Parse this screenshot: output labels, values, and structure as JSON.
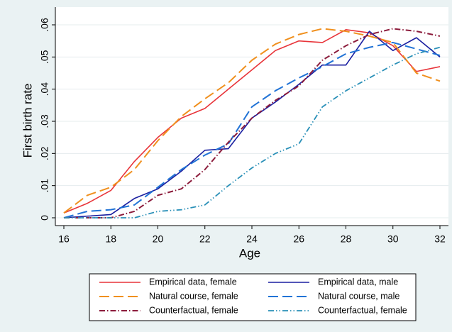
{
  "chart_data": {
    "type": "line",
    "y_label": "First birth rate",
    "x_label": "Age",
    "x": [
      16,
      17,
      18,
      19,
      20,
      21,
      22,
      23,
      24,
      25,
      26,
      27,
      28,
      29,
      30,
      31,
      32
    ],
    "xlim": [
      16,
      32
    ],
    "xticks": [
      16,
      18,
      20,
      22,
      24,
      26,
      28,
      30,
      32
    ],
    "ylim": [
      0,
      0.06
    ],
    "yticks": [
      0,
      {
        "value": 0.01,
        "label": ".01"
      },
      {
        "value": 0.02,
        "label": ".02"
      },
      {
        "value": 0.03,
        "label": ".03"
      },
      {
        "value": 0.04,
        "label": ".04"
      },
      {
        "value": 0.05,
        "label": ".05"
      },
      {
        "value": 0.06,
        "label": ".06"
      }
    ],
    "grid": true,
    "legend": "bottom",
    "series": [
      {
        "name": "Empirical data, female",
        "color": "#e8343a",
        "style": "solid",
        "values": [
          0.0015,
          0.0045,
          0.0085,
          0.0175,
          0.025,
          0.031,
          0.034,
          0.04,
          0.046,
          0.052,
          0.055,
          0.0545,
          0.0585,
          0.0575,
          0.0535,
          0.0455,
          0.047
        ]
      },
      {
        "name": "Empirical data, male",
        "color": "#1a1fa0",
        "style": "solid",
        "values": [
          0,
          0.0005,
          0.001,
          0.006,
          0.009,
          0.0145,
          0.021,
          0.0215,
          0.031,
          0.036,
          0.0415,
          0.0475,
          0.0475,
          0.058,
          0.052,
          0.056,
          0.05
        ]
      },
      {
        "name": "Natural course, female",
        "color": "#f0901e",
        "style": "dash",
        "values": [
          0.0015,
          0.007,
          0.0095,
          0.015,
          0.024,
          0.0315,
          0.037,
          0.042,
          0.049,
          0.054,
          0.057,
          0.0588,
          0.058,
          0.0565,
          0.0545,
          0.045,
          0.0425
        ]
      },
      {
        "name": "Natural course, male",
        "color": "#2173d6",
        "style": "dash",
        "values": [
          0,
          0.002,
          0.0025,
          0.004,
          0.0095,
          0.015,
          0.0195,
          0.023,
          0.0345,
          0.0395,
          0.0435,
          0.047,
          0.051,
          0.053,
          0.0545,
          0.0525,
          0.0505
        ]
      },
      {
        "name": "Counterfactual, female",
        "color": "#8c1c3c",
        "style": "dashdot",
        "values": [
          0,
          0,
          0,
          0.002,
          0.007,
          0.009,
          0.015,
          0.0235,
          0.031,
          0.0365,
          0.041,
          0.049,
          0.0535,
          0.057,
          0.0588,
          0.058,
          0.0565
        ]
      },
      {
        "name": "Counterfactual, female",
        "color": "#2a90b8",
        "style": "dashdotdot",
        "values": [
          0,
          0,
          0,
          0,
          0.002,
          0.0025,
          0.004,
          0.01,
          0.0155,
          0.02,
          0.023,
          0.0345,
          0.0395,
          0.0435,
          0.0475,
          0.051,
          0.053
        ]
      }
    ]
  }
}
